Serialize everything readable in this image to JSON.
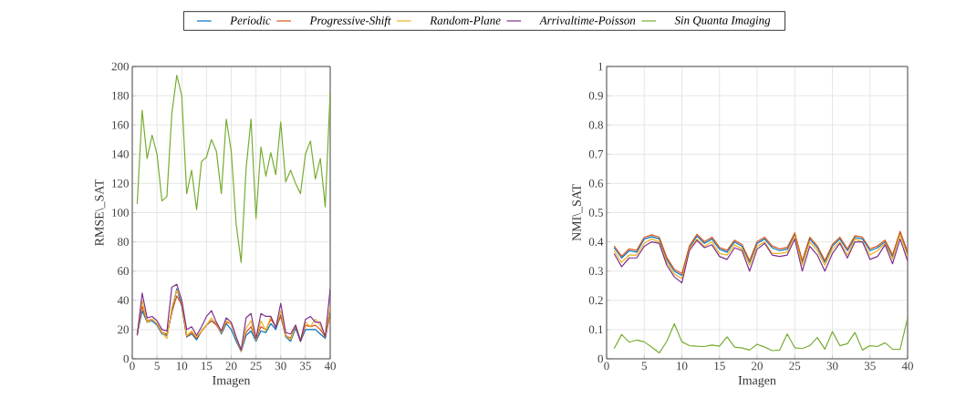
{
  "chart_data": [
    {
      "type": "line",
      "xlabel": "Imagen",
      "ylabel": "RMSE\\_SAT",
      "xlim": [
        0,
        40
      ],
      "ylim": [
        0,
        200
      ],
      "xticks": [
        0,
        5,
        10,
        15,
        20,
        25,
        30,
        35,
        40
      ],
      "yticks": [
        0,
        20,
        40,
        60,
        80,
        100,
        120,
        140,
        160,
        180,
        200
      ],
      "grid": true,
      "legend": "top",
      "x": [
        1,
        2,
        3,
        4,
        5,
        6,
        7,
        8,
        9,
        10,
        11,
        12,
        13,
        14,
        15,
        16,
        17,
        18,
        19,
        20,
        21,
        22,
        23,
        24,
        25,
        26,
        27,
        28,
        29,
        30,
        31,
        32,
        33,
        34,
        35,
        36,
        37,
        38,
        39,
        40
      ],
      "series": [
        {
          "name": "Periodic",
          "color": "#0072bd",
          "values": [
            17,
            33,
            25,
            26,
            23,
            17,
            16,
            32,
            48,
            36,
            15,
            17,
            13,
            19,
            23,
            26,
            24,
            17,
            24,
            20,
            12,
            5,
            16,
            19,
            12,
            19,
            18,
            24,
            20,
            30,
            15,
            12,
            21,
            12,
            20,
            20,
            20,
            17,
            14,
            33
          ]
        },
        {
          "name": "Progressive-Shift",
          "color": "#d95319",
          "values": [
            17,
            36,
            26,
            27,
            24,
            18,
            17,
            32,
            43,
            37,
            15,
            18,
            14,
            19,
            23,
            26,
            23,
            18,
            25,
            24,
            14,
            6,
            18,
            22,
            13,
            22,
            20,
            27,
            22,
            29,
            16,
            14,
            23,
            12,
            23,
            22,
            23,
            20,
            15,
            30
          ]
        },
        {
          "name": "Random-Plane",
          "color": "#edb120",
          "values": [
            17,
            40,
            25,
            27,
            24,
            18,
            14,
            35,
            47,
            40,
            16,
            19,
            15,
            19,
            23,
            28,
            24,
            18,
            26,
            24,
            14,
            5,
            21,
            26,
            13,
            26,
            19,
            29,
            22,
            33,
            16,
            13,
            23,
            13,
            25,
            22,
            27,
            23,
            15,
            36
          ]
        },
        {
          "name": "Arrivaltime-Poisson",
          "color": "#7e2f8e",
          "values": [
            16,
            45,
            28,
            29,
            26,
            20,
            19,
            49,
            51,
            40,
            20,
            22,
            16,
            22,
            29,
            33,
            25,
            19,
            28,
            25,
            15,
            6,
            28,
            31,
            14,
            31,
            29,
            29,
            21,
            38,
            18,
            17,
            23,
            12,
            27,
            29,
            25,
            25,
            15,
            48
          ]
        },
        {
          "name": "Sin Quanta Imaging",
          "color": "#77ac30",
          "values": [
            106,
            170,
            137,
            153,
            140,
            108,
            111,
            168,
            194,
            180,
            113,
            129,
            102,
            135,
            138,
            150,
            142,
            113,
            164,
            142,
            92,
            66,
            130,
            164,
            96,
            145,
            125,
            141,
            126,
            162,
            121,
            129,
            120,
            113,
            140,
            149,
            123,
            137,
            104,
            183
          ]
        }
      ]
    },
    {
      "type": "line",
      "xlabel": "Imagen",
      "ylabel": "NMI\\_SAT",
      "xlim": [
        0,
        40
      ],
      "ylim": [
        0,
        1
      ],
      "xticks": [
        0,
        5,
        10,
        15,
        20,
        25,
        30,
        35,
        40
      ],
      "yticks": [
        0,
        0.1,
        0.2,
        0.3,
        0.4,
        0.5,
        0.6,
        0.7,
        0.8,
        0.9,
        1
      ],
      "grid": true,
      "x": [
        1,
        2,
        3,
        4,
        5,
        6,
        7,
        8,
        9,
        10,
        11,
        12,
        13,
        14,
        15,
        16,
        17,
        18,
        19,
        20,
        21,
        22,
        23,
        24,
        25,
        26,
        27,
        28,
        29,
        30,
        31,
        32,
        33,
        34,
        35,
        36,
        37,
        38,
        39,
        40
      ],
      "series": [
        {
          "color": "#0072bd",
          "values": [
            0.38,
            0.345,
            0.37,
            0.365,
            0.41,
            0.418,
            0.41,
            0.34,
            0.3,
            0.285,
            0.38,
            0.42,
            0.395,
            0.41,
            0.375,
            0.365,
            0.4,
            0.385,
            0.33,
            0.395,
            0.41,
            0.38,
            0.37,
            0.375,
            0.425,
            0.33,
            0.41,
            0.38,
            0.33,
            0.385,
            0.41,
            0.37,
            0.415,
            0.41,
            0.37,
            0.38,
            0.4,
            0.35,
            0.43,
            0.36
          ]
        },
        {
          "color": "#d95319",
          "values": [
            0.386,
            0.351,
            0.376,
            0.371,
            0.416,
            0.424,
            0.416,
            0.346,
            0.306,
            0.291,
            0.386,
            0.426,
            0.401,
            0.416,
            0.381,
            0.371,
            0.406,
            0.391,
            0.336,
            0.401,
            0.416,
            0.386,
            0.376,
            0.381,
            0.431,
            0.336,
            0.416,
            0.386,
            0.336,
            0.391,
            0.416,
            0.376,
            0.421,
            0.416,
            0.376,
            0.386,
            0.406,
            0.356,
            0.436,
            0.366
          ]
        },
        {
          "color": "#edb120",
          "values": [
            0.37,
            0.33,
            0.355,
            0.355,
            0.395,
            0.41,
            0.4,
            0.33,
            0.29,
            0.275,
            0.375,
            0.41,
            0.385,
            0.4,
            0.36,
            0.355,
            0.39,
            0.375,
            0.32,
            0.385,
            0.4,
            0.36,
            0.36,
            0.365,
            0.42,
            0.32,
            0.4,
            0.37,
            0.32,
            0.375,
            0.4,
            0.355,
            0.41,
            0.4,
            0.355,
            0.37,
            0.395,
            0.34,
            0.425,
            0.35
          ]
        },
        {
          "color": "#7e2f8e",
          "values": [
            0.36,
            0.315,
            0.345,
            0.345,
            0.385,
            0.4,
            0.395,
            0.32,
            0.28,
            0.26,
            0.37,
            0.405,
            0.38,
            0.39,
            0.35,
            0.34,
            0.38,
            0.37,
            0.3,
            0.375,
            0.395,
            0.355,
            0.35,
            0.355,
            0.41,
            0.3,
            0.385,
            0.355,
            0.3,
            0.36,
            0.395,
            0.345,
            0.4,
            0.4,
            0.34,
            0.35,
            0.39,
            0.325,
            0.41,
            0.335
          ]
        },
        {
          "color": "#77ac30",
          "values": [
            0.035,
            0.083,
            0.057,
            0.064,
            0.058,
            0.04,
            0.02,
            0.06,
            0.12,
            0.058,
            0.045,
            0.043,
            0.042,
            0.047,
            0.043,
            0.075,
            0.04,
            0.037,
            0.03,
            0.05,
            0.04,
            0.028,
            0.03,
            0.085,
            0.038,
            0.035,
            0.045,
            0.073,
            0.033,
            0.093,
            0.045,
            0.052,
            0.09,
            0.03,
            0.045,
            0.042,
            0.055,
            0.033,
            0.032,
            0.14
          ]
        }
      ]
    }
  ]
}
